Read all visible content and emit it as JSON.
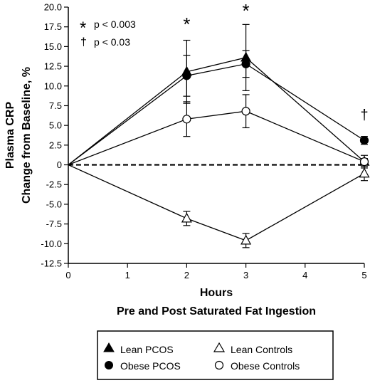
{
  "chart_data": {
    "type": "line",
    "xlabel": "Hours",
    "xlabel2": "Pre and Post Saturated Fat Ingestion",
    "ylabel": "Plasma CRP",
    "ylabel2": "Change from Baseline, %",
    "x": [
      0,
      2,
      3,
      5
    ],
    "xlim": [
      0,
      5
    ],
    "ylim": [
      -12.5,
      20.0
    ],
    "xticks": [
      "0",
      "1",
      "2",
      "3",
      "4",
      "5"
    ],
    "yticks": [
      "20.0",
      "17.5",
      "15.0",
      "12.5",
      "10.0",
      "7.5",
      "5.0",
      "2.5",
      "0",
      "-2.5",
      "-5.0",
      "-7.5",
      "-10.0",
      "-12.5"
    ],
    "grid": false,
    "baseline": 0,
    "series": [
      {
        "name": "Lean PCOS",
        "marker": "triangle-filled",
        "values": [
          0,
          11.8,
          13.6,
          0.4
        ],
        "errors": [
          0,
          4.0,
          4.2,
          0.4
        ]
      },
      {
        "name": "Obese PCOS",
        "marker": "circle-filled",
        "values": [
          0,
          11.3,
          12.8,
          3.1
        ],
        "errors": [
          0,
          2.6,
          1.7,
          0.5
        ]
      },
      {
        "name": "Lean Controls",
        "marker": "triangle-open",
        "values": [
          0,
          -6.8,
          -9.6,
          -1.1
        ],
        "errors": [
          0,
          0.9,
          0.9,
          0.9
        ]
      },
      {
        "name": "Obese Controls",
        "marker": "circle-open",
        "values": [
          0,
          5.8,
          6.8,
          0.4
        ],
        "errors": [
          0,
          2.2,
          2.1,
          0.8
        ]
      }
    ],
    "significance": [
      {
        "symbol": "*",
        "x": 2
      },
      {
        "symbol": "*",
        "x": 3
      },
      {
        "symbol": "†",
        "x": 5
      }
    ],
    "significance_key": [
      {
        "symbol": "*",
        "text": "p < 0.003"
      },
      {
        "symbol": "†",
        "text": "p < 0.03"
      }
    ],
    "legend_position": "bottom"
  }
}
